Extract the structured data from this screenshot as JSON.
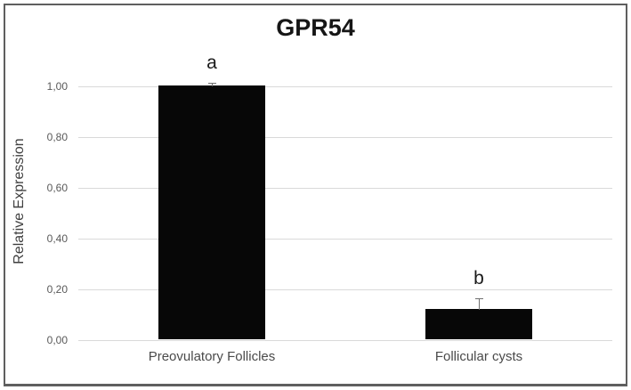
{
  "frame": {
    "border_color": "#5f5f5f"
  },
  "chart_data": {
    "type": "bar",
    "title": "GPR54",
    "xlabel": "",
    "ylabel": "Relative Expression",
    "categories": [
      "Preovulatory Follicles",
      "Follicular cysts"
    ],
    "values": [
      1.0,
      0.12
    ],
    "errors": [
      0.015,
      0.046
    ],
    "sig_labels": [
      "a",
      "b"
    ],
    "ylim": [
      0,
      1.0
    ],
    "ytick_step": 0.2,
    "ytick_labels": [
      "0,00",
      "0,20",
      "0,40",
      "0,60",
      "0,80",
      "1,00"
    ],
    "grid": true,
    "legend": "none",
    "bar_color": "#070707",
    "gridline_color": "#d9d9d9",
    "error_bar_color": "#6f6f6f",
    "tick_label_color": "#595959"
  }
}
